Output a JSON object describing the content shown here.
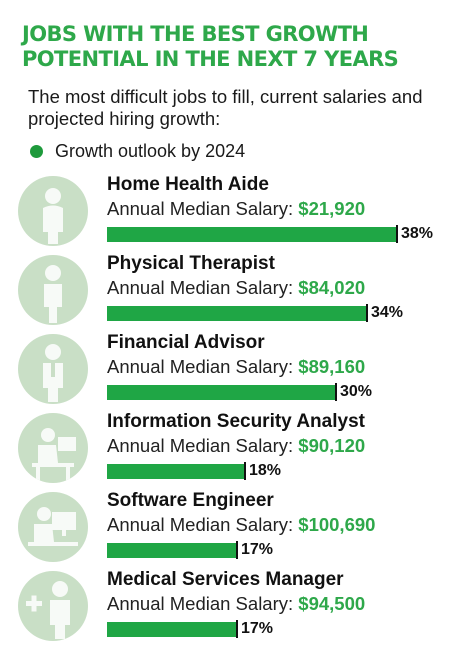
{
  "header": {
    "title": "JOBS WITH THE BEST GROWTH POTENTIAL IN THE NEXT 7 YEARS",
    "subtitle": "The most difficult jobs to fill, current salaries and projected hiring growth:"
  },
  "legend": {
    "label": "Growth outlook by 2024",
    "color": "#1e9a3c"
  },
  "colors": {
    "accent": "#2ea84a",
    "bar": "#1fa645",
    "icon_bg": "#c9dfc6"
  },
  "salary_prefix": "Annual Median Salary:",
  "jobs": [
    {
      "title": "Home Health Aide",
      "salary": "$21,920",
      "growth_label": "38%",
      "icon": "caregiver-icon"
    },
    {
      "title": "Physical Therapist",
      "salary": "$84,020",
      "growth_label": "34%",
      "icon": "therapist-icon"
    },
    {
      "title": "Financial Advisor",
      "salary": "$89,160",
      "growth_label": "30%",
      "icon": "advisor-icon"
    },
    {
      "title": "Information Security Analyst",
      "salary": "$90,120",
      "growth_label": "18%",
      "icon": "security-analyst-icon"
    },
    {
      "title": "Software Engineer",
      "salary": "$100,690",
      "growth_label": "17%",
      "icon": "software-engineer-icon"
    },
    {
      "title": "Medical Services Manager",
      "salary": "$94,500",
      "growth_label": "17%",
      "icon": "medical-manager-icon"
    }
  ],
  "chart_data": {
    "type": "bar",
    "title": "JOBS WITH THE BEST GROWTH POTENTIAL IN THE NEXT 7 YEARS",
    "categories": [
      "Home Health Aide",
      "Physical Therapist",
      "Financial Advisor",
      "Information Security Analyst",
      "Software Engineer",
      "Medical Services Manager"
    ],
    "series": [
      {
        "name": "Growth outlook by 2024",
        "values": [
          38,
          34,
          30,
          18,
          17,
          17
        ]
      }
    ],
    "salaries": [
      21920,
      84020,
      89160,
      90120,
      100690,
      94500
    ],
    "orientation": "horizontal",
    "legend": "top-left",
    "grid": false
  }
}
